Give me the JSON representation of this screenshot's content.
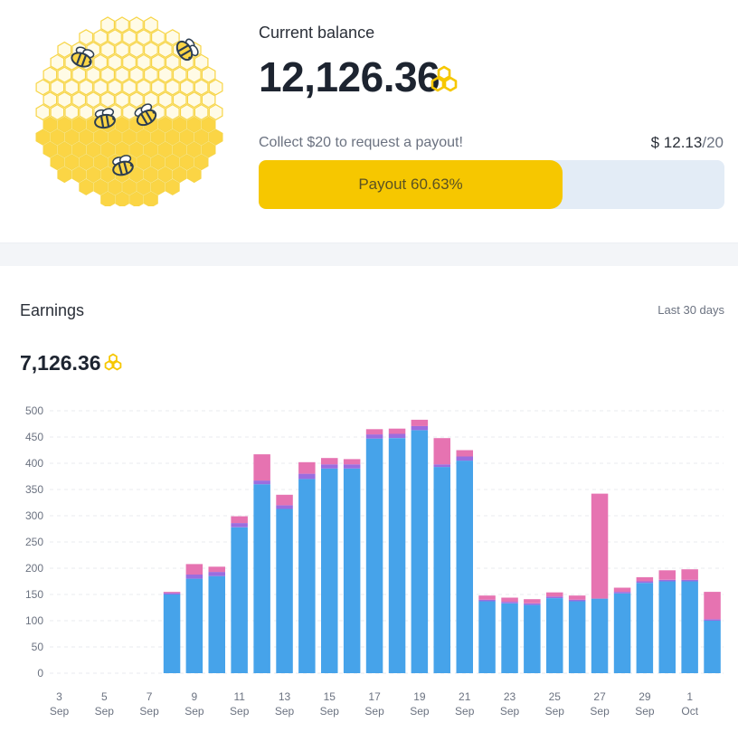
{
  "balance": {
    "label": "Current balance",
    "value": "12,126.36",
    "currency_icon": "honeycomb-icon"
  },
  "payout": {
    "collect_text": "Collect $20 to request a payout!",
    "current_amount": "$ 12.13",
    "target_amount": "/20",
    "progress_label": "Payout 60.63%",
    "progress_percent": 60.63
  },
  "earnings": {
    "title": "Earnings",
    "range_label": "Last 30 days",
    "total": "7,126.36",
    "currency_icon": "honeycomb-icon"
  },
  "colors": {
    "accent_yellow": "#f6c700",
    "track": "#e3ecf6",
    "series_blue": "#46a3ea",
    "series_purple": "#9b6ddf",
    "series_pink": "#e673b1"
  },
  "chart_data": {
    "type": "bar",
    "stacked": true,
    "ylim": [
      0,
      500
    ],
    "yticks": [
      0,
      50,
      100,
      150,
      200,
      250,
      300,
      350,
      400,
      450,
      500
    ],
    "grid": true,
    "categories": [
      "3 Sep",
      "4 Sep",
      "5 Sep",
      "6 Sep",
      "7 Sep",
      "8 Sep",
      "9 Sep",
      "10 Sep",
      "11 Sep",
      "12 Sep",
      "13 Sep",
      "14 Sep",
      "15 Sep",
      "16 Sep",
      "17 Sep",
      "18 Sep",
      "19 Sep",
      "20 Sep",
      "21 Sep",
      "22 Sep",
      "23 Sep",
      "24 Sep",
      "25 Sep",
      "26 Sep",
      "27 Sep",
      "28 Sep",
      "29 Sep",
      "30 Sep",
      "1 Oct",
      "2 Oct"
    ],
    "xtick_labels": [
      {
        "index": 0,
        "day": "3",
        "month": "Sep"
      },
      {
        "index": 2,
        "day": "5",
        "month": "Sep"
      },
      {
        "index": 4,
        "day": "7",
        "month": "Sep"
      },
      {
        "index": 6,
        "day": "9",
        "month": "Sep"
      },
      {
        "index": 8,
        "day": "11",
        "month": "Sep"
      },
      {
        "index": 10,
        "day": "13",
        "month": "Sep"
      },
      {
        "index": 12,
        "day": "15",
        "month": "Sep"
      },
      {
        "index": 14,
        "day": "17",
        "month": "Sep"
      },
      {
        "index": 16,
        "day": "19",
        "month": "Sep"
      },
      {
        "index": 18,
        "day": "21",
        "month": "Sep"
      },
      {
        "index": 20,
        "day": "23",
        "month": "Sep"
      },
      {
        "index": 22,
        "day": "25",
        "month": "Sep"
      },
      {
        "index": 24,
        "day": "27",
        "month": "Sep"
      },
      {
        "index": 26,
        "day": "29",
        "month": "Sep"
      },
      {
        "index": 28,
        "day": "1",
        "month": "Oct"
      }
    ],
    "series": [
      {
        "color": "#46a3ea",
        "values": [
          0,
          0,
          0,
          0,
          0,
          150,
          180,
          185,
          278,
          360,
          313,
          370,
          390,
          390,
          447,
          448,
          463,
          393,
          405,
          137,
          133,
          130,
          143,
          137,
          142,
          152,
          172,
          175,
          175,
          100
        ]
      },
      {
        "color": "#9b6ddf",
        "values": [
          0,
          0,
          0,
          0,
          0,
          3,
          8,
          8,
          8,
          7,
          7,
          10,
          8,
          8,
          8,
          8,
          8,
          5,
          8,
          3,
          3,
          3,
          3,
          3,
          0,
          3,
          3,
          3,
          3,
          3
        ]
      },
      {
        "color": "#e673b1",
        "values": [
          0,
          0,
          0,
          0,
          0,
          2,
          20,
          10,
          13,
          50,
          20,
          22,
          12,
          10,
          10,
          10,
          12,
          50,
          12,
          8,
          8,
          8,
          8,
          8,
          200,
          8,
          8,
          18,
          20,
          52
        ]
      }
    ]
  }
}
